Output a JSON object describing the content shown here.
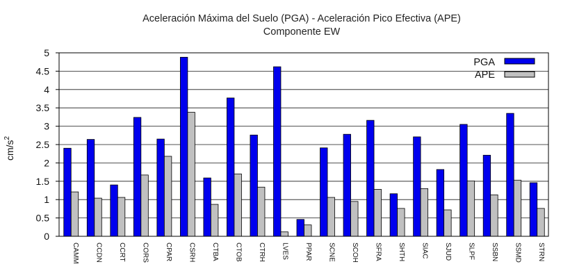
{
  "chart_data": {
    "type": "bar",
    "title": "Aceleración Máxima del Suelo (PGA) -  Aceleración Pico Efectiva (APE)",
    "subtitle": "Componente EW",
    "xlabel": "",
    "ylabel": "cm/s",
    "ylabel_superscript": "2",
    "ylim": [
      0,
      5
    ],
    "yticks": [
      "0",
      "0.5",
      "1",
      "1.5",
      "2",
      "2.5",
      "3",
      "3.5",
      "4",
      "4.5",
      "5"
    ],
    "grid": true,
    "legend_position": "top-right",
    "categories": [
      "CAMM",
      "CCDN",
      "CCRT",
      "CORS",
      "CPAR",
      "CSRH",
      "CTBA",
      "CTOB",
      "CTRH",
      "LVES",
      "PPAR",
      "SCNE",
      "SCOH",
      "SFRA",
      "SHTH",
      "SIAC",
      "SJUD",
      "SLPF",
      "SSBN",
      "SSMD",
      "STRN"
    ],
    "series": [
      {
        "name": "PGA",
        "color": "#0000ee",
        "values": [
          2.4,
          2.64,
          1.4,
          3.24,
          2.65,
          4.88,
          1.59,
          3.77,
          2.76,
          4.62,
          0.46,
          2.41,
          2.78,
          3.16,
          1.16,
          2.71,
          1.82,
          3.05,
          2.21,
          3.35,
          1.46
        ]
      },
      {
        "name": "APE",
        "color": "#c0c0c0",
        "values": [
          1.21,
          1.04,
          1.06,
          1.67,
          2.18,
          3.38,
          0.87,
          1.7,
          1.34,
          0.12,
          0.31,
          1.06,
          0.95,
          1.28,
          0.76,
          1.3,
          0.72,
          1.51,
          1.13,
          1.53,
          0.76
        ]
      }
    ]
  }
}
